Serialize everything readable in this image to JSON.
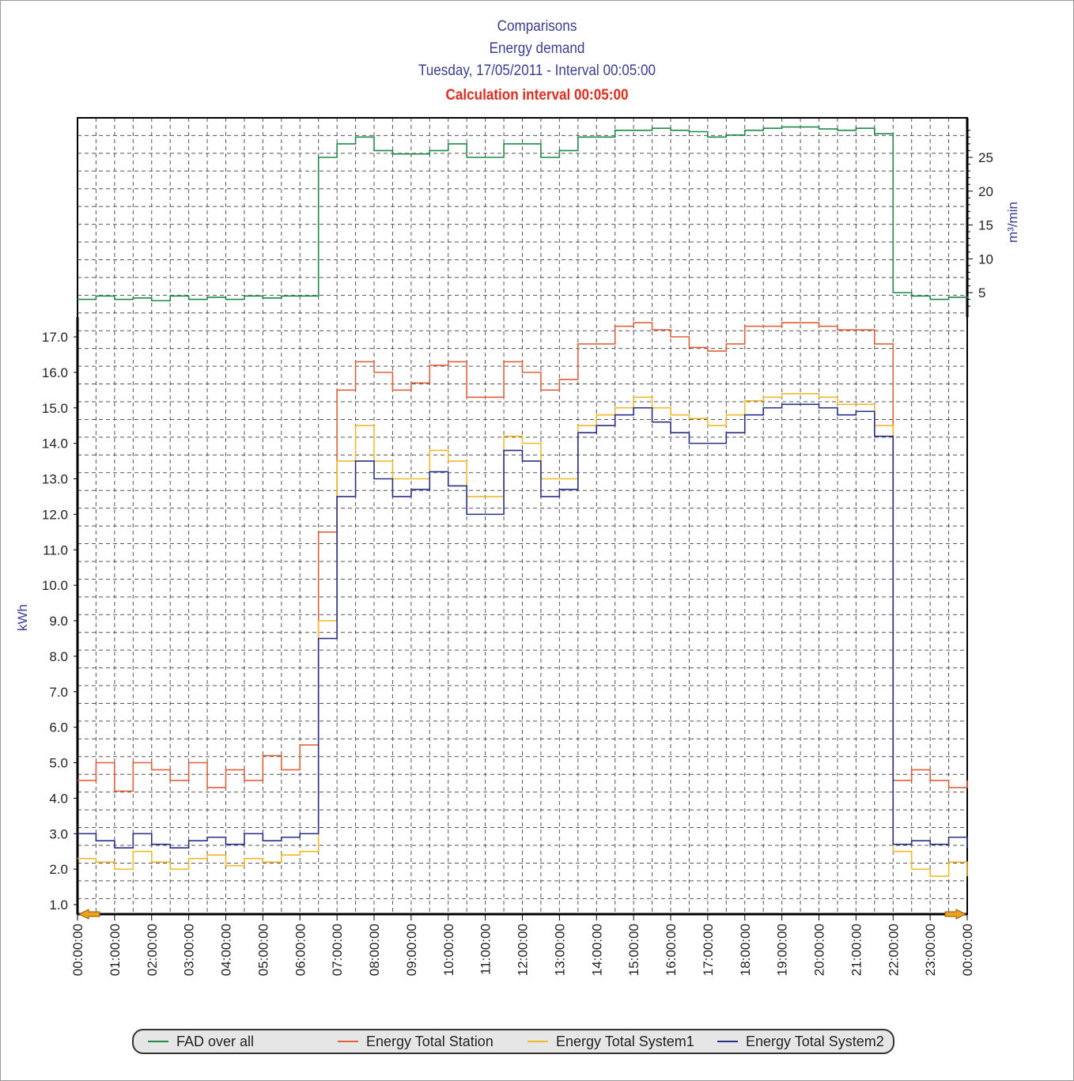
{
  "chart_data": {
    "type": "line",
    "title": "Comparisons",
    "subtitle_lines": [
      "Energy demand",
      "Tuesday, 17/05/2011 - Interval 00:05:00"
    ],
    "calc_interval": "Calculation interval 00:05:00",
    "ylabel": "kWh",
    "y2label": "m³/min",
    "ylim": [
      0.7,
      17.5
    ],
    "y_ticks": [
      "1.0",
      "2.0",
      "3.0",
      "4.0",
      "5.0",
      "6.0",
      "7.0",
      "8.0",
      "9.0",
      "10.0",
      "11.0",
      "12.0",
      "13.0",
      "14.0",
      "15.0",
      "16.0",
      "17.0"
    ],
    "y2_ticks": [
      "5",
      "10",
      "15",
      "20",
      "25"
    ],
    "x_ticks": [
      "00:00:00",
      "01:00:00",
      "02:00:00",
      "03:00:00",
      "04:00:00",
      "05:00:00",
      "06:00:00",
      "07:00:00",
      "08:00:00",
      "09:00:00",
      "10:00:00",
      "11:00:00",
      "12:00:00",
      "13:00:00",
      "14:00:00",
      "15:00:00",
      "16:00:00",
      "17:00:00",
      "18:00:00",
      "19:00:00",
      "20:00:00",
      "21:00:00",
      "22:00:00",
      "23:00:00",
      "00:00:00"
    ],
    "x_step_hours": 0.5,
    "grid": true,
    "legend_position": "bottom",
    "series": [
      {
        "name": "FAD over all",
        "axis": "right",
        "color": "#1e8a4a",
        "values": [
          4,
          4.5,
          4,
          4.2,
          3.8,
          4.5,
          4,
          4.3,
          4,
          4.5,
          4.2,
          4.5,
          4.5,
          25,
          27,
          28,
          26,
          25.5,
          25.5,
          26,
          27,
          25,
          25,
          27,
          27,
          25,
          26,
          28,
          28,
          29,
          29,
          29.3,
          29,
          28.8,
          28,
          28.3,
          29,
          29.3,
          29.5,
          29.5,
          29.2,
          29,
          29.3,
          28.5,
          5,
          4.5,
          4,
          4.3,
          4.2
        ]
      },
      {
        "name": "Energy Total Station",
        "axis": "left",
        "color": "#e0603a",
        "values": [
          4.5,
          5,
          4.2,
          5,
          4.8,
          4.5,
          5,
          4.3,
          4.8,
          4.5,
          5.2,
          4.8,
          5.5,
          11.5,
          15.5,
          16.3,
          16,
          15.5,
          15.7,
          16.2,
          16.3,
          15.3,
          15.3,
          16.3,
          16,
          15.5,
          15.8,
          16.8,
          16.8,
          17.3,
          17.4,
          17.2,
          17,
          16.7,
          16.6,
          16.8,
          17.3,
          17.3,
          17.4,
          17.4,
          17.3,
          17.2,
          17.2,
          16.8,
          4.5,
          4.8,
          4.5,
          4.3,
          4.5
        ]
      },
      {
        "name": "Energy Total System1",
        "axis": "left",
        "color": "#f0b92a",
        "values": [
          2.3,
          2.2,
          2,
          2.5,
          2.2,
          2,
          2.3,
          2.4,
          2.1,
          2.3,
          2.2,
          2.4,
          2.5,
          9,
          13.5,
          14.5,
          13.5,
          13,
          13,
          13.8,
          13.5,
          12.5,
          12.5,
          14.2,
          14,
          13,
          13,
          14.5,
          14.8,
          15,
          15.3,
          15,
          14.8,
          14.7,
          14.5,
          14.8,
          15.2,
          15.3,
          15.4,
          15.4,
          15.3,
          15.1,
          15.1,
          14.5,
          2.5,
          2,
          1.8,
          2.2,
          1.8
        ]
      },
      {
        "name": "Energy Total System2",
        "axis": "left",
        "color": "#2a2f8a",
        "values": [
          3,
          2.8,
          2.6,
          3,
          2.7,
          2.6,
          2.8,
          2.9,
          2.7,
          3,
          2.8,
          2.9,
          3,
          8.5,
          12.5,
          13.5,
          13,
          12.5,
          12.7,
          13.2,
          12.8,
          12,
          12,
          13.8,
          13.5,
          12.5,
          12.7,
          14.3,
          14.5,
          14.8,
          15,
          14.6,
          14.3,
          14,
          14,
          14.3,
          14.8,
          15,
          15.1,
          15.1,
          15,
          14.8,
          14.9,
          14.2,
          2.7,
          2.8,
          2.7,
          2.9,
          2.6
        ]
      }
    ]
  }
}
